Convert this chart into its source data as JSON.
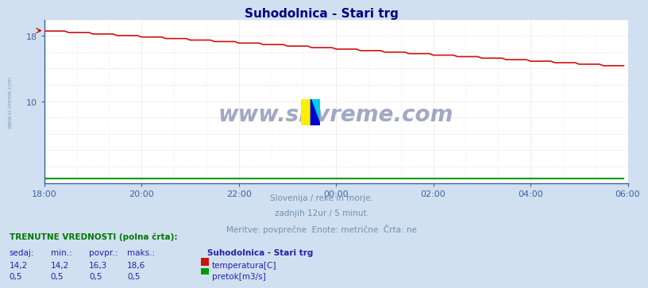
{
  "title": "Suhodolnica - Stari trg",
  "title_color": "#000080",
  "bg_color": "#d0e0f0",
  "plot_bg_color": "#ffffff",
  "subtitle_lines": [
    "Slovenija / reke in morje.",
    "zadnjih 12ur / 5 minut.",
    "Meritve: povprečne  Enote: metrične  Črta: ne"
  ],
  "subtitle_color": "#7090b0",
  "watermark": "www.si-vreme.com",
  "watermark_color": "#1a2a6a",
  "xlim": [
    0,
    144
  ],
  "ylim": [
    0,
    20
  ],
  "ytick_positions": [
    10,
    18
  ],
  "ytick_labels": [
    "10",
    "18"
  ],
  "xtick_positions": [
    0,
    24,
    48,
    72,
    96,
    120,
    144
  ],
  "xtick_labels": [
    "18:00",
    "20:00",
    "22:00",
    "00:00",
    "02:00",
    "04:00",
    "06:00"
  ],
  "grid_major_color": "#e8c8c8",
  "grid_minor_color": "#f0e0e0",
  "temp_color": "#cc1111",
  "flow_color": "#009900",
  "axis_color": "#4060a0",
  "tick_color": "#4060a0",
  "info_header_color": "#007700",
  "info_label_color": "#2222aa",
  "temp_data_sedaj": 14.2,
  "temp_data_min": 14.2,
  "temp_data_povpr": 16.3,
  "temp_data_maks": 18.6,
  "flow_data_sedaj": 0.5,
  "flow_data_min": 0.5,
  "flow_data_povpr": 0.5,
  "flow_data_maks": 0.5,
  "flow_scale_max": 20.0,
  "left_watermark": "www.si-vreme.com",
  "left_watermark_color": "#7090b0"
}
